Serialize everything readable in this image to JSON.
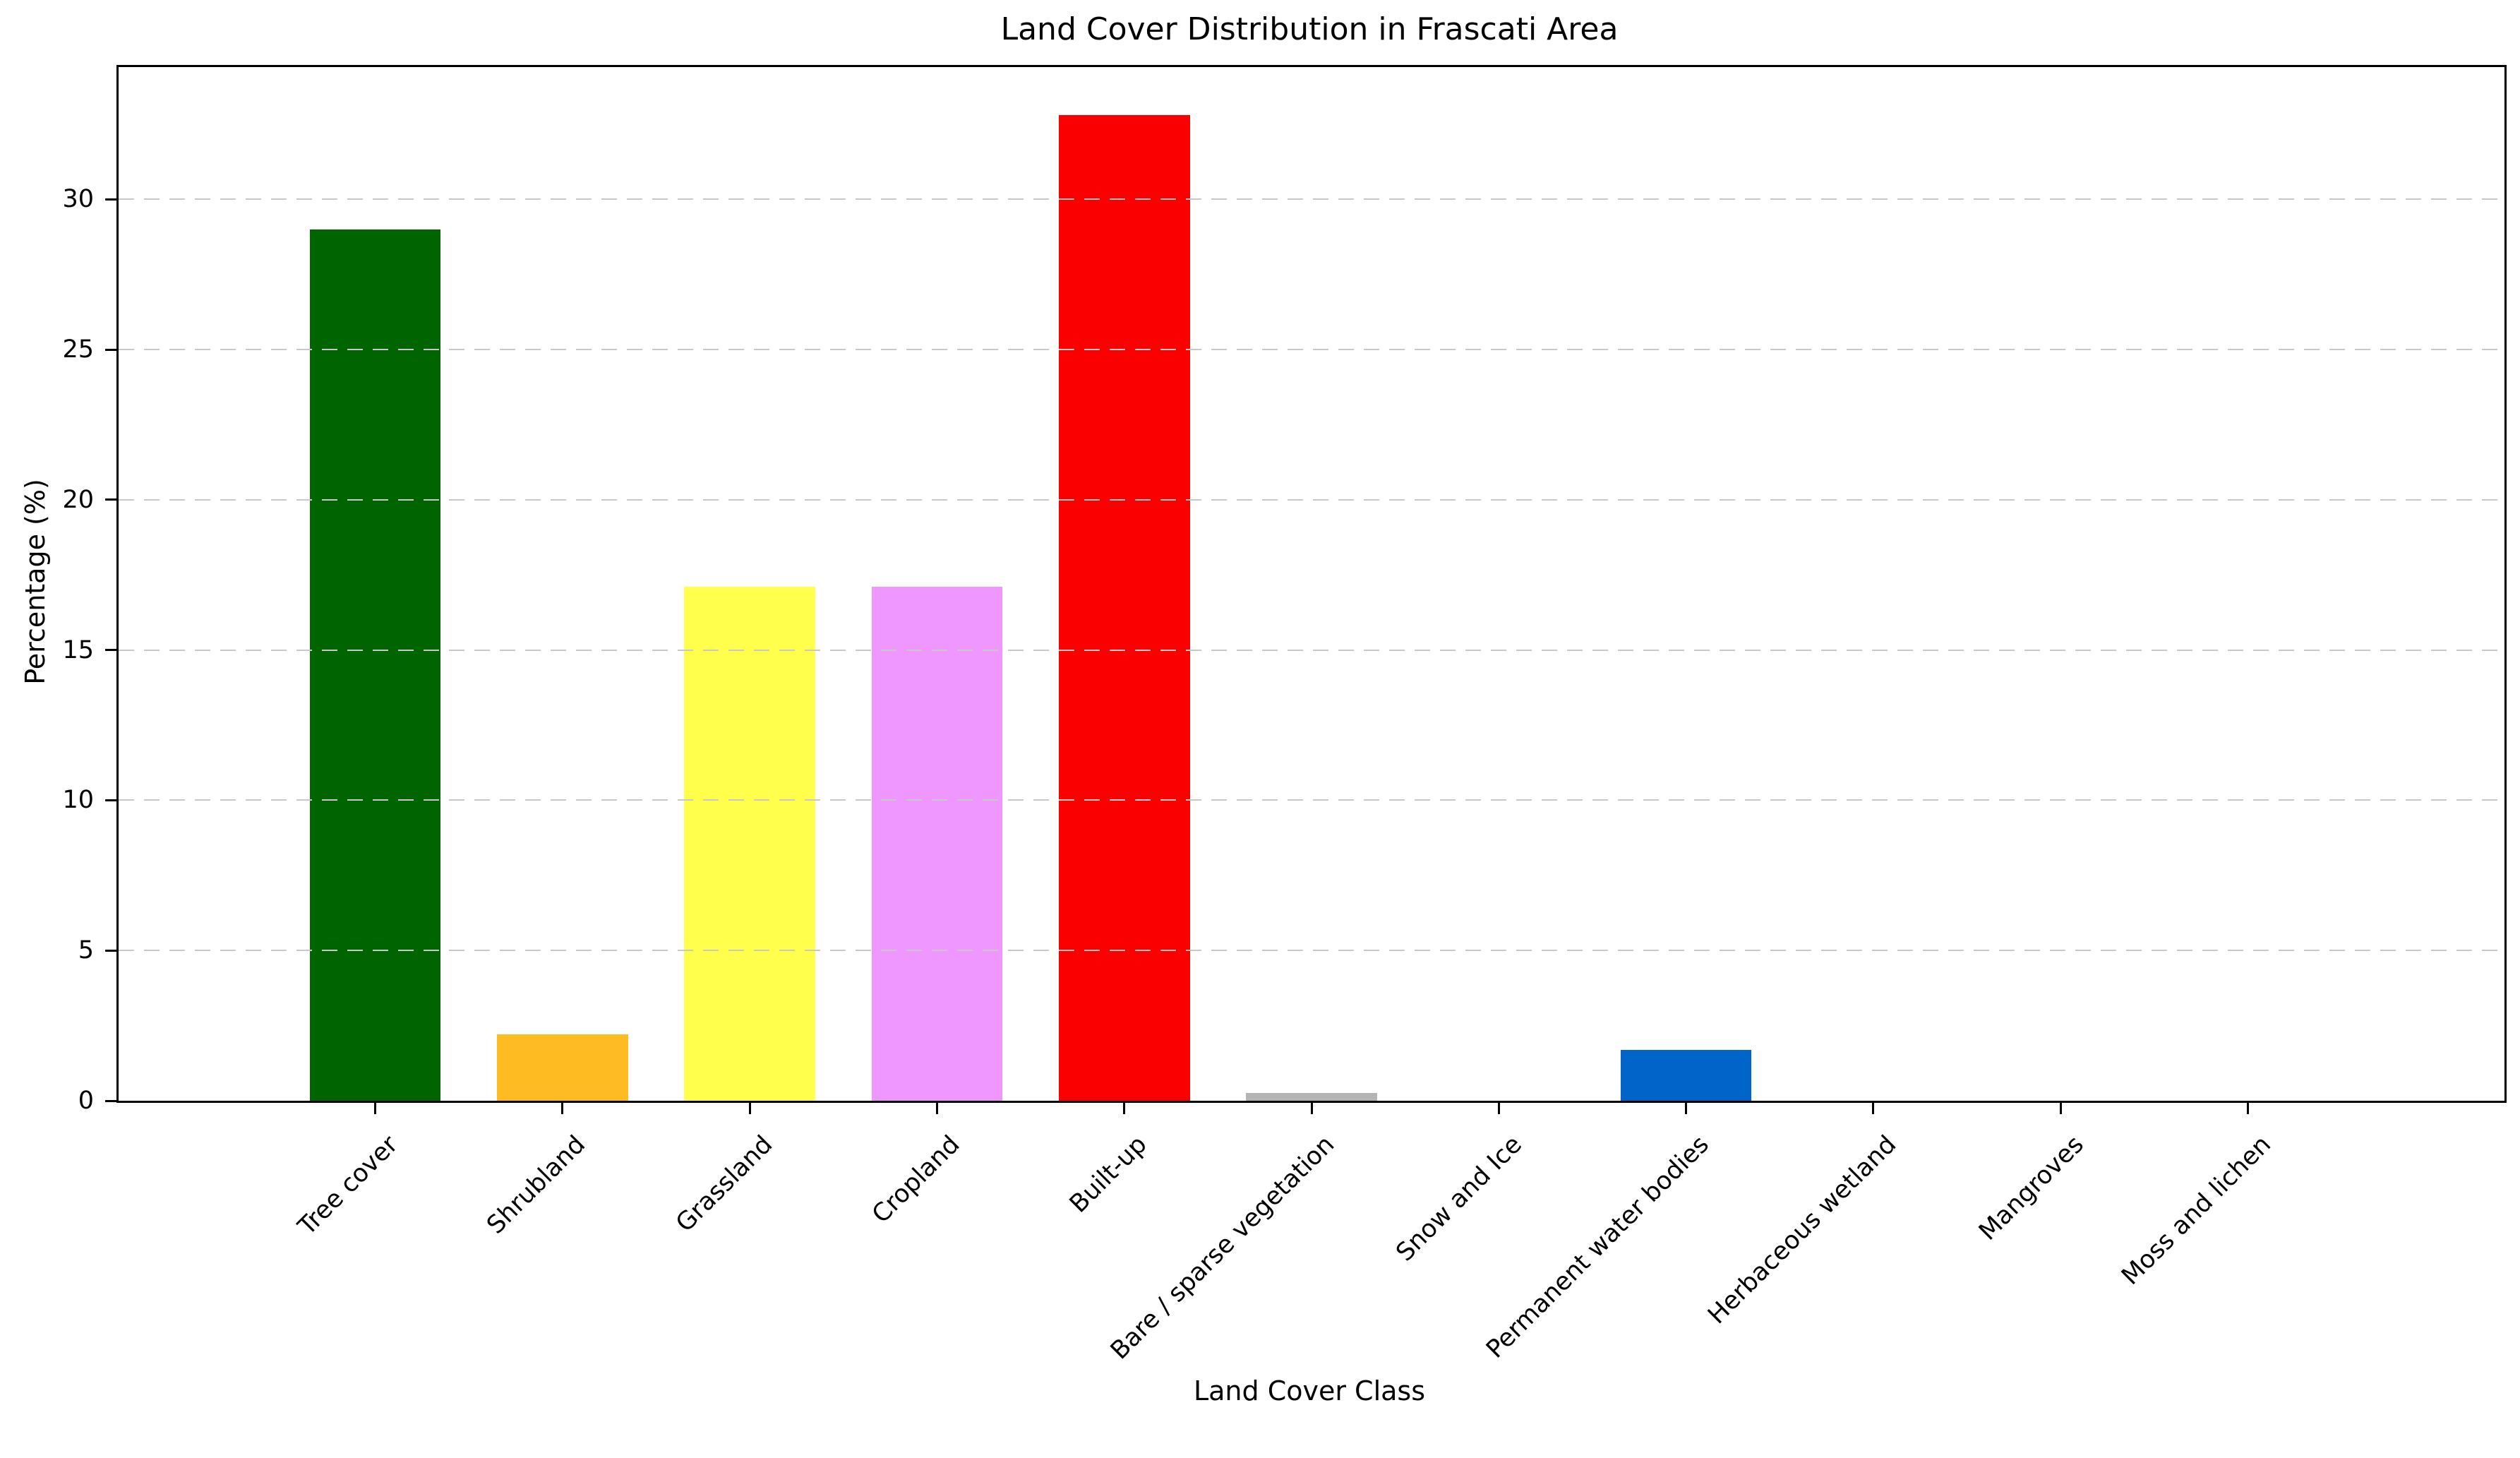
{
  "chart_data": {
    "type": "bar",
    "title": "Land Cover Distribution in Frascati Area",
    "xlabel": "Land Cover Class",
    "ylabel": "Percentage (%)",
    "categories": [
      "Tree cover",
      "Shrubland",
      "Grassland",
      "Cropland",
      "Built-up",
      "Bare / sparse vegetation",
      "Snow and Ice",
      "Permanent water bodies",
      "Herbaceous wetland",
      "Mangroves",
      "Moss and lichen"
    ],
    "values": [
      29.0,
      2.2,
      17.1,
      17.1,
      32.8,
      0.25,
      0.0,
      1.7,
      0.0,
      0.0,
      0.0
    ],
    "bar_colors": [
      "#006400",
      "#FFBB22",
      "#FFFF4C",
      "#F096FF",
      "#FA0000",
      "#B4B4B4",
      null,
      "#0064C8",
      null,
      null,
      null
    ],
    "yticks": [
      0,
      5,
      10,
      15,
      20,
      25,
      30
    ],
    "ylim": [
      0,
      34.4
    ],
    "xtick_rotation_deg": 45,
    "grid": "horizontal-dashed",
    "grid_color": "#c8c8c8",
    "grid_above_bars": true,
    "spine_color": "#000000",
    "background_color": "#ffffff",
    "legend_position": "none"
  }
}
